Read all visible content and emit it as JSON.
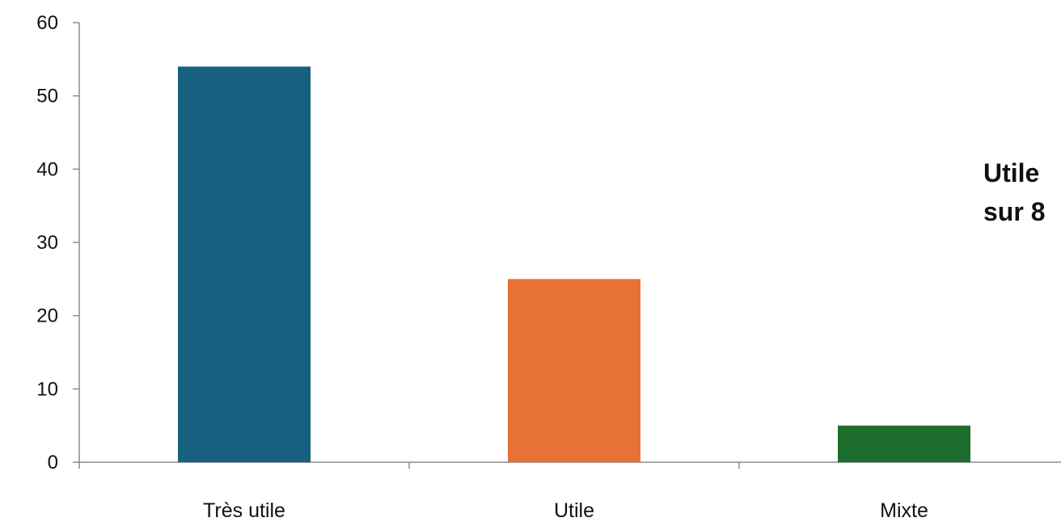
{
  "chart_data": {
    "type": "bar",
    "categories": [
      "Très utile",
      "Utile",
      "Mixte"
    ],
    "values": [
      54,
      25,
      5
    ],
    "colors": [
      "#17607f",
      "#e87234",
      "#1d6d2c"
    ],
    "ylim": [
      0,
      60
    ],
    "yticks": [
      0,
      10,
      20,
      30,
      40,
      50,
      60
    ],
    "grid": false,
    "legend": "none",
    "annotation_lines": [
      "Utile",
      "sur 8"
    ]
  }
}
